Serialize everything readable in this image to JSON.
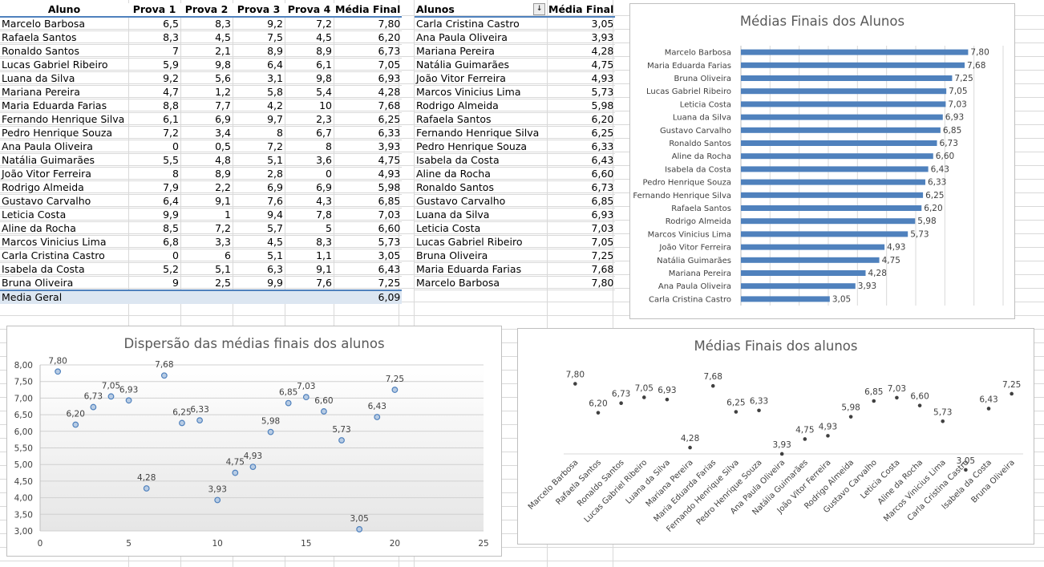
{
  "table1": {
    "headers": [
      "Aluno",
      "Prova 1",
      "Prova 2",
      "Prova 3",
      "Prova 4",
      "Média Final"
    ],
    "rows": [
      [
        "Marcelo Barbosa",
        "6,5",
        "8,3",
        "9,2",
        "7,2",
        "7,80"
      ],
      [
        "Rafaela Santos",
        "8,3",
        "4,5",
        "7,5",
        "4,5",
        "6,20"
      ],
      [
        "Ronaldo Santos",
        "7",
        "2,1",
        "8,9",
        "8,9",
        "6,73"
      ],
      [
        "Lucas Gabriel Ribeiro",
        "5,9",
        "9,8",
        "6,4",
        "6,1",
        "7,05"
      ],
      [
        "Luana da Silva",
        "9,2",
        "5,6",
        "3,1",
        "9,8",
        "6,93"
      ],
      [
        "Mariana Pereira",
        "4,7",
        "1,2",
        "5,8",
        "5,4",
        "4,28"
      ],
      [
        "Maria Eduarda Farias",
        "8,8",
        "7,7",
        "4,2",
        "10",
        "7,68"
      ],
      [
        "Fernando Henrique Silva",
        "6,1",
        "6,9",
        "9,7",
        "2,3",
        "6,25"
      ],
      [
        "Pedro Henrique Souza",
        "7,2",
        "3,4",
        "8",
        "6,7",
        "6,33"
      ],
      [
        "Ana Paula Oliveira",
        "0",
        "0,5",
        "7,2",
        "8",
        "3,93"
      ],
      [
        "Natália Guimarães",
        "5,5",
        "4,8",
        "5,1",
        "3,6",
        "4,75"
      ],
      [
        "João Vitor Ferreira",
        "8",
        "8,9",
        "2,8",
        "0",
        "4,93"
      ],
      [
        "Rodrigo Almeida",
        "7,9",
        "2,2",
        "6,9",
        "6,9",
        "5,98"
      ],
      [
        "Gustavo Carvalho",
        "6,4",
        "9,1",
        "7,6",
        "4,3",
        "6,85"
      ],
      [
        "Leticia Costa",
        "9,9",
        "1",
        "9,4",
        "7,8",
        "7,03"
      ],
      [
        "Aline da Rocha",
        "8,5",
        "7,2",
        "5,7",
        "5",
        "6,60"
      ],
      [
        "Marcos Vinicius Lima",
        "6,8",
        "3,3",
        "4,5",
        "8,3",
        "5,73"
      ],
      [
        "Carla Cristina Castro",
        "0",
        "6",
        "5,1",
        "1,1",
        "3,05"
      ],
      [
        "Isabela da Costa",
        "5,2",
        "5,1",
        "6,3",
        "9,1",
        "6,43"
      ],
      [
        "Bruna Oliveira",
        "9",
        "2,5",
        "9,9",
        "7,6",
        "7,25"
      ]
    ],
    "footer_label": "Media Geral",
    "footer_value": "6,09"
  },
  "table2": {
    "headers": [
      "Alunos",
      "Média Final"
    ],
    "sort_icon": "sort-ascending-icon",
    "rows": [
      [
        "Carla Cristina Castro",
        "3,05"
      ],
      [
        "Ana Paula Oliveira",
        "3,93"
      ],
      [
        "Mariana Pereira",
        "4,28"
      ],
      [
        "Natália Guimarães",
        "4,75"
      ],
      [
        "João Vitor Ferreira",
        "4,93"
      ],
      [
        "Marcos Vinicius Lima",
        "5,73"
      ],
      [
        "Rodrigo Almeida",
        "5,98"
      ],
      [
        "Rafaela Santos",
        "6,20"
      ],
      [
        "Fernando Henrique Silva",
        "6,25"
      ],
      [
        "Pedro Henrique Souza",
        "6,33"
      ],
      [
        "Isabela da Costa",
        "6,43"
      ],
      [
        "Aline da Rocha",
        "6,60"
      ],
      [
        "Ronaldo Santos",
        "6,73"
      ],
      [
        "Gustavo Carvalho",
        "6,85"
      ],
      [
        "Luana da Silva",
        "6,93"
      ],
      [
        "Leticia Costa",
        "7,03"
      ],
      [
        "Lucas Gabriel Ribeiro",
        "7,05"
      ],
      [
        "Bruna Oliveira",
        "7,25"
      ],
      [
        "Maria Eduarda Farias",
        "7,68"
      ],
      [
        "Marcelo Barbosa",
        "7,80"
      ]
    ]
  },
  "colors": {
    "accent": "#4f81bd",
    "bar": "#4f81bd",
    "marker_fill": "#b8cce4",
    "point": "#404040",
    "grid": "#d9d9d9",
    "title": "#595959"
  },
  "chart_data": [
    {
      "type": "bar",
      "title": "Médias Finais  dos Alunos",
      "categories": [
        "Marcelo Barbosa",
        "Maria Eduarda Farias",
        "Bruna Oliveira",
        "Lucas Gabriel Ribeiro",
        "Leticia Costa",
        "Luana da Silva",
        "Gustavo Carvalho",
        "Ronaldo Santos",
        "Aline da Rocha",
        "Isabela da Costa",
        "Pedro Henrique Souza",
        "Fernando Henrique Silva",
        "Rafaela Santos",
        "Rodrigo Almeida",
        "Marcos Vinicius Lima",
        "João Vitor Ferreira",
        "Natália Guimarães",
        "Mariana Pereira",
        "Ana Paula Oliveira",
        "Carla Cristina Castro"
      ],
      "values": [
        7.8,
        7.68,
        7.25,
        7.05,
        7.03,
        6.93,
        6.85,
        6.73,
        6.6,
        6.43,
        6.33,
        6.25,
        6.2,
        5.98,
        5.73,
        4.93,
        4.75,
        4.28,
        3.93,
        3.05
      ],
      "labels": [
        "7,80",
        "7,68",
        "7,25",
        "7,05",
        "7,03",
        "6,93",
        "6,85",
        "6,73",
        "6,60",
        "6,43",
        "6,33",
        "6,25",
        "6,20",
        "5,98",
        "5,73",
        "4,93",
        "4,75",
        "4,28",
        "3,93",
        "3,05"
      ],
      "xlim": [
        0,
        9
      ],
      "grid": true
    },
    {
      "type": "scatter",
      "title": "Dispersão das médias finais dos alunos",
      "x": [
        1,
        2,
        3,
        4,
        5,
        6,
        7,
        8,
        9,
        10,
        11,
        12,
        13,
        14,
        15,
        16,
        17,
        18,
        19,
        20
      ],
      "y": [
        7.8,
        6.2,
        6.73,
        7.05,
        6.93,
        4.28,
        7.68,
        6.25,
        6.33,
        3.93,
        4.75,
        4.93,
        5.98,
        6.85,
        7.03,
        6.6,
        5.73,
        3.05,
        6.43,
        7.25
      ],
      "labels": [
        "7,80",
        "6,20",
        "6,73",
        "7,05",
        "6,93",
        "4,28",
        "7,68",
        "6,25",
        "6,33",
        "3,93",
        "4,75",
        "4,93",
        "5,98",
        "6,85",
        "7,03",
        "6,60",
        "5,73",
        "3,05",
        "6,43",
        "7,25"
      ],
      "xlim": [
        0,
        25
      ],
      "xticks": [
        "0",
        "5",
        "10",
        "15",
        "20",
        "25"
      ],
      "ylim": [
        3,
        8
      ],
      "yticks": [
        "3,00",
        "3,50",
        "4,00",
        "4,50",
        "5,00",
        "5,50",
        "6,00",
        "6,50",
        "7,00",
        "7,50",
        "8,00"
      ],
      "grid": true
    },
    {
      "type": "line",
      "title": "Médias Finais dos alunos",
      "categories": [
        "Marcelo Barbosa",
        "Rafaela Santos",
        "Ronaldo Santos",
        "Lucas Gabriel Ribeiro",
        "Luana da Silva",
        "Mariana Pereira",
        "Maria Eduarda Farias",
        "Fernando Henrique Silva",
        "Pedro Henrique Souza",
        "Ana Paula Oliveira",
        "Natália Guimarães",
        "João Vitor Ferreira",
        "Rodrigo Almeida",
        "Gustavo Carvalho",
        "Leticia Costa",
        "Aline da Rocha",
        "Marcos Vinicius Lima",
        "Carla Cristina Castro",
        "Isabela da Costa",
        "Bruna Oliveira"
      ],
      "values": [
        7.8,
        6.2,
        6.73,
        7.05,
        6.93,
        4.28,
        7.68,
        6.25,
        6.33,
        3.93,
        4.75,
        4.93,
        5.98,
        6.85,
        7.03,
        6.6,
        5.73,
        3.05,
        6.43,
        7.25
      ],
      "labels": [
        "7,80",
        "6,20",
        "6,73",
        "7,05",
        "6,93",
        "4,28",
        "7,68",
        "6,25",
        "6,33",
        "3,93",
        "4,75",
        "4,93",
        "5,98",
        "6,85",
        "7,03",
        "6,60",
        "5,73",
        "3,05",
        "6,43",
        "7,25"
      ],
      "ylim": [
        0,
        8
      ],
      "markers_only": true
    }
  ]
}
